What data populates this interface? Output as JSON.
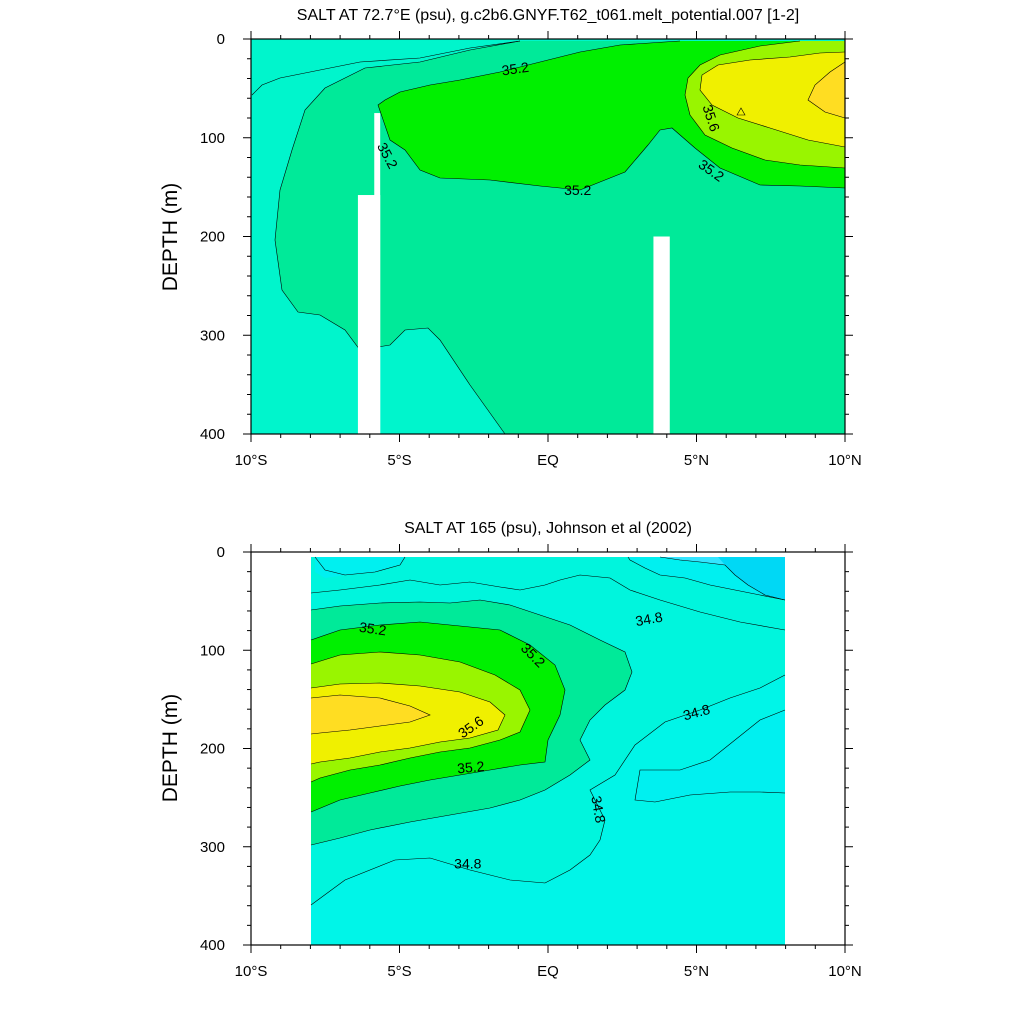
{
  "chart_data": [
    {
      "type": "contour",
      "title": "SALT AT  72.7°E (psu), g.c2b6.GNYF.T62_t061.melt_potential.007 [1-2]",
      "ylabel": "DEPTH (m)",
      "xlabel": "",
      "xlim": [
        -10,
        10
      ],
      "ylim": [
        400,
        0
      ],
      "xticks": [
        {
          "value": -10,
          "label": "10°S"
        },
        {
          "value": -5,
          "label": "5°S"
        },
        {
          "value": 0,
          "label": "EQ"
        },
        {
          "value": 5,
          "label": "5°N"
        },
        {
          "value": 10,
          "label": "10°N"
        }
      ],
      "yticks": [
        {
          "value": 0,
          "label": "0"
        },
        {
          "value": 100,
          "label": "100"
        },
        {
          "value": 200,
          "label": "200"
        },
        {
          "value": 300,
          "label": "300"
        },
        {
          "value": 400,
          "label": "400"
        }
      ],
      "contour_labels": [
        {
          "text": "35.2",
          "x": -1.1,
          "depth": 30,
          "angle": -8
        },
        {
          "text": "35.2",
          "x": -5.4,
          "depth": 118,
          "angle": 62
        },
        {
          "text": "35.2",
          "x": 1.0,
          "depth": 153,
          "angle": 0
        },
        {
          "text": "35.6",
          "x": 5.5,
          "depth": 80,
          "angle": 72
        },
        {
          "text": "35.2",
          "x": 5.5,
          "depth": 133,
          "angle": 35
        }
      ],
      "missing_columns": [
        {
          "x0": -6.4,
          "x1": -5.65,
          "depth_top": 158
        },
        {
          "x0": -5.85,
          "x1": -5.65,
          "depth_top": 75
        },
        {
          "x0": 3.55,
          "x1": 4.1,
          "depth_top": 200
        }
      ]
    },
    {
      "type": "contour",
      "title": "SALT AT 165 (psu), Johnson et al (2002)",
      "ylabel": "DEPTH (m)",
      "xlabel": "",
      "xlim": [
        -10,
        10
      ],
      "ylim": [
        400,
        0
      ],
      "data_xrange": [
        -8,
        8
      ],
      "xticks": [
        {
          "value": -10,
          "label": "10°S"
        },
        {
          "value": -5,
          "label": "5°S"
        },
        {
          "value": 0,
          "label": "EQ"
        },
        {
          "value": 5,
          "label": "5°N"
        },
        {
          "value": 10,
          "label": "10°N"
        }
      ],
      "yticks": [
        {
          "value": 0,
          "label": "0"
        },
        {
          "value": 100,
          "label": "100"
        },
        {
          "value": 200,
          "label": "200"
        },
        {
          "value": 300,
          "label": "300"
        },
        {
          "value": 400,
          "label": "400"
        }
      ],
      "contour_labels": [
        {
          "text": "35.2",
          "x": -5.9,
          "depth": 78,
          "angle": 8
        },
        {
          "text": "35.2",
          "x": -0.5,
          "depth": 105,
          "angle": 45
        },
        {
          "text": "34.8",
          "x": 3.4,
          "depth": 68,
          "angle": -10
        },
        {
          "text": "35.6",
          "x": -2.6,
          "depth": 178,
          "angle": -35
        },
        {
          "text": "34.8",
          "x": 5.0,
          "depth": 163,
          "angle": -15
        },
        {
          "text": "35.2",
          "x": -2.6,
          "depth": 219,
          "angle": -5
        },
        {
          "text": "34.8",
          "x": 1.7,
          "depth": 262,
          "angle": 80
        },
        {
          "text": "34.8",
          "x": -2.7,
          "depth": 317,
          "angle": 0
        }
      ]
    }
  ]
}
